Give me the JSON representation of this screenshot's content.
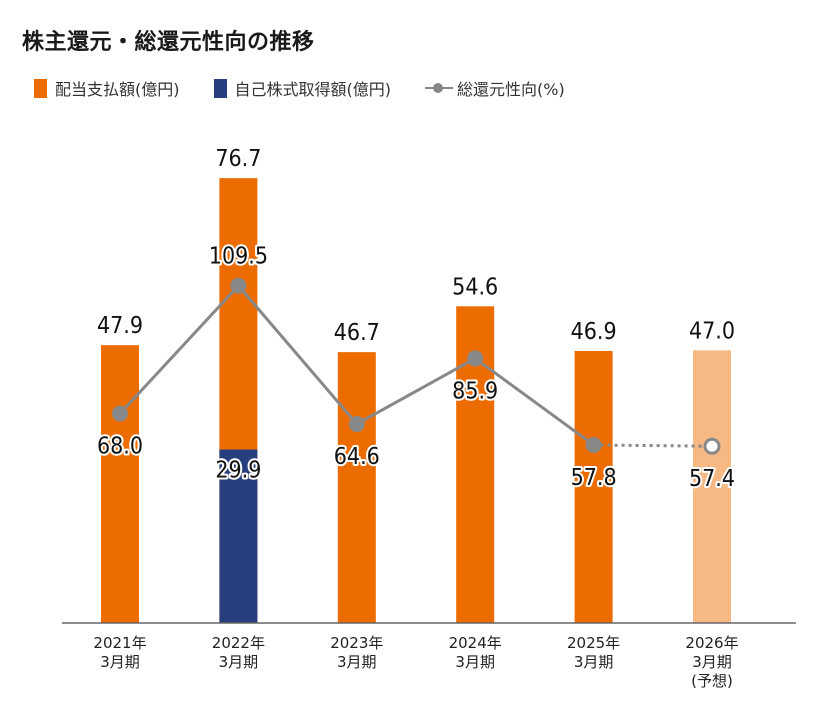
{
  "chart_data": {
    "type": "bar",
    "title": "株主還元・総還元性向の推移",
    "legend": [
      {
        "label": "配当支払額(億円)",
        "color": "#ec6c00"
      },
      {
        "label": "自己株式取得額(億円)",
        "color": "#273f7f"
      },
      {
        "label": "総還元性向(%)",
        "color": "#888888"
      }
    ],
    "categories": [
      [
        "2021年",
        "3月期"
      ],
      [
        "2022年",
        "3月期"
      ],
      [
        "2023年",
        "3月期"
      ],
      [
        "2024年",
        "3月期"
      ],
      [
        "2025年",
        "3月期"
      ],
      [
        "2026年",
        "3月期",
        "(予想)"
      ]
    ],
    "bar_totals": [
      47.9,
      76.7,
      46.7,
      54.6,
      46.9,
      47.0
    ],
    "buyback": [
      null,
      29.9,
      null,
      null,
      null,
      null
    ],
    "total_return_ratio": [
      68.0,
      109.5,
      64.6,
      85.9,
      57.8,
      57.4
    ],
    "forecast_index": 5,
    "colors": {
      "dividend": "#ec6c00",
      "buyback": "#273f7f",
      "forecast": "#f6b983",
      "line": "#888888"
    },
    "bar_ylim": [
      0,
      100
    ],
    "line_ylim": [
      0,
      170
    ]
  }
}
